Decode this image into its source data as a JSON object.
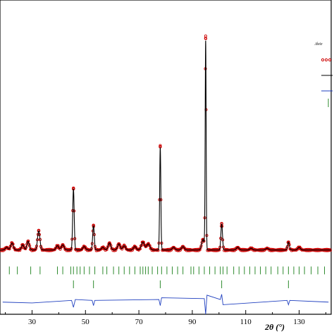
{
  "chart_data": {
    "type": "line",
    "xlabel": "2θ (°)",
    "xlim": [
      18,
      142
    ],
    "ylim": [
      -72,
      290
    ],
    "xticks": [
      30,
      50,
      70,
      90,
      110,
      130
    ],
    "legend": {
      "position": "top-right",
      "header": ".ifeir",
      "entries": [
        {
          "label": "",
          "color": "#cc0000",
          "style": "circle"
        },
        {
          "label": "",
          "color": "#000000",
          "style": "line"
        },
        {
          "label": "",
          "color": "#1f3fbf",
          "style": "line"
        },
        {
          "label": "",
          "color": "#2e8b2e",
          "style": "tick"
        }
      ]
    },
    "colors": {
      "observed": "#cc0000",
      "calculated": "#000000",
      "difference": "#1f3fbf",
      "bragg_phase1": "#2e8b2e",
      "bragg_phase2": "#2e8b2e"
    },
    "baseline": 2,
    "peaks": [
      {
        "x": 20.5,
        "h": 3,
        "w": 0.5
      },
      {
        "x": 22.5,
        "h": 8,
        "w": 0.5
      },
      {
        "x": 26.5,
        "h": 6,
        "w": 0.45
      },
      {
        "x": 28.5,
        "h": 10,
        "w": 0.45
      },
      {
        "x": 32.5,
        "h": 22,
        "w": 0.45
      },
      {
        "x": 39.5,
        "h": 5,
        "w": 0.5
      },
      {
        "x": 41.5,
        "h": 6,
        "w": 0.5
      },
      {
        "x": 45.5,
        "h": 70,
        "w": 0.28
      },
      {
        "x": 49.5,
        "h": 4,
        "w": 0.5
      },
      {
        "x": 53.0,
        "h": 28,
        "w": 0.3
      },
      {
        "x": 56.5,
        "h": 3,
        "w": 0.5
      },
      {
        "x": 59.0,
        "h": 8,
        "w": 0.5
      },
      {
        "x": 62.5,
        "h": 7,
        "w": 0.5
      },
      {
        "x": 64.5,
        "h": 5,
        "w": 0.5
      },
      {
        "x": 68.5,
        "h": 4,
        "w": 0.5
      },
      {
        "x": 71.5,
        "h": 9,
        "w": 0.6
      },
      {
        "x": 73.5,
        "h": 7,
        "w": 0.6
      },
      {
        "x": 78.0,
        "h": 118,
        "w": 0.22
      },
      {
        "x": 83.0,
        "h": 3,
        "w": 0.5
      },
      {
        "x": 86.5,
        "h": 4,
        "w": 0.5
      },
      {
        "x": 94.0,
        "h": 12,
        "w": 0.5
      },
      {
        "x": 95.0,
        "h": 240,
        "w": 0.18
      },
      {
        "x": 101.0,
        "h": 30,
        "w": 0.3
      },
      {
        "x": 107.0,
        "h": 3,
        "w": 0.5
      },
      {
        "x": 112.0,
        "h": 2,
        "w": 0.5
      },
      {
        "x": 118.0,
        "h": 2,
        "w": 0.5
      },
      {
        "x": 126.0,
        "h": 9,
        "w": 0.35
      },
      {
        "x": 130.0,
        "h": 3,
        "w": 0.5
      }
    ],
    "bragg_phase1": [
      21.5,
      24.5,
      29.5,
      33.0,
      39.5,
      41.5,
      44.5,
      45.5,
      46.8,
      48.0,
      49.5,
      51.5,
      53.5,
      56.5,
      58.0,
      60.5,
      62.5,
      64.5,
      66.5,
      68.5,
      70.5,
      71.5,
      72.5,
      73.5,
      75.0,
      77.0,
      78.5,
      80.5,
      82.5,
      84.5,
      86.5,
      89.5,
      90.5,
      92.5,
      94.5,
      96.5,
      98.5,
      100.5,
      101.5,
      103.0,
      105.5,
      107.5,
      109.5,
      111.5,
      113.5,
      115.5,
      117.5,
      119.5,
      122.0,
      124.0,
      126.0,
      128.0,
      130.0,
      132.0,
      134.5,
      137.0,
      139.5
    ],
    "bragg_phase2": [
      45.5,
      53.0,
      78.0,
      101.0,
      126.0
    ],
    "difference": [
      [
        19,
        0
      ],
      [
        30,
        -1
      ],
      [
        44.8,
        2
      ],
      [
        45.5,
        -6
      ],
      [
        46.2,
        3
      ],
      [
        52.5,
        2
      ],
      [
        53.0,
        -4
      ],
      [
        53.5,
        2
      ],
      [
        77.5,
        3
      ],
      [
        78.0,
        -4
      ],
      [
        78.5,
        5
      ],
      [
        94.5,
        4
      ],
      [
        95.0,
        -14
      ],
      [
        95.5,
        8
      ],
      [
        100.5,
        3
      ],
      [
        101.0,
        9
      ],
      [
        101.5,
        -3
      ],
      [
        125.5,
        2
      ],
      [
        126.0,
        -3
      ],
      [
        126.5,
        2
      ],
      [
        141,
        0
      ]
    ],
    "difference_offset": -58
  }
}
